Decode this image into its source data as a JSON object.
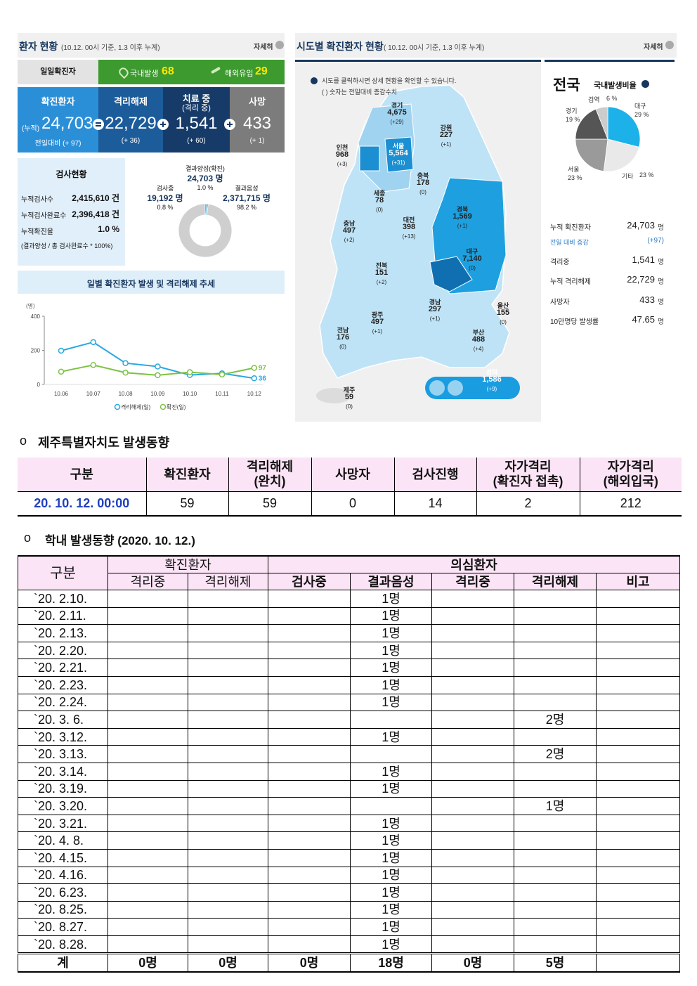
{
  "left_panel": {
    "title": "환자 현황",
    "subtitle": "(10.12. 00시 기준, 1.3 이후 누계)",
    "more": "자세히",
    "daily": {
      "label": "일일확진자",
      "domestic_label": "국내발생",
      "domestic": "68",
      "overseas_label": "해외유입",
      "overseas": "29"
    },
    "stats": [
      {
        "label": "확진환자",
        "prefix": "(누적)",
        "value": "24,703",
        "note": "전일대비 (+ 97)"
      },
      {
        "label": "격리해제",
        "value": "22,729",
        "note": "(+ 36)"
      },
      {
        "label": "치료 중",
        "sub": "(격리 중)",
        "value": "1,541",
        "note": "(+ 60)"
      },
      {
        "label": "사망",
        "value": "433",
        "note": "(+ 1)"
      }
    ],
    "tests": {
      "title": "검사현황",
      "rows": [
        [
          "누적검사수",
          "2,415,610 건"
        ],
        [
          "누적검사완료수",
          "2,396,418 건"
        ],
        [
          "누적확진율",
          "1.0 %"
        ]
      ],
      "note": "(결과양성 / 총 검사완료수 * 100%)"
    },
    "donut": {
      "type": "pie",
      "categories": [
        "검사중",
        "결과양성(확진)",
        "결과음성"
      ],
      "counts": [
        "19,192 명",
        "24,703 명",
        "2,371,715 명"
      ],
      "values": [
        0.8,
        1.0,
        98.2
      ],
      "value_labels": [
        "0.8 %",
        "1.0 %",
        "98.2 %"
      ],
      "colors": [
        "#5f5f5f",
        "#1ea5e2",
        "#cfcfcf"
      ]
    },
    "trend": {
      "type": "line",
      "title": "일별 확진환자 발생 및 격리해제 추세",
      "y_unit": "(명)",
      "x": [
        "10.06",
        "10.07",
        "10.08",
        "10.09",
        "10.10",
        "10.11",
        "10.12"
      ],
      "ylim": [
        0,
        400
      ],
      "yticks": [
        0,
        200,
        400
      ],
      "series": [
        {
          "name": "격리해제(일)",
          "color": "#29a8e0",
          "values": [
            198,
            248,
            125,
            105,
            55,
            65,
            36
          ]
        },
        {
          "name": "확진(일)",
          "color": "#7dc243",
          "values": [
            75,
            114,
            69,
            54,
            72,
            58,
            97
          ]
        }
      ]
    }
  },
  "right_panel": {
    "title": "시도별 확진환자 현황",
    "subtitle": "( 10.12. 00시 기준, 1.3 이후 누계)",
    "more": "자세히",
    "notes": [
      "시도를 클릭하시면 상세 현황을 확인할 수 있습니다.",
      "( ) 숫자는 전일대비 증감수치"
    ],
    "regions": [
      {
        "name": "경기",
        "count": "4,675",
        "change": "(+29)"
      },
      {
        "name": "강원",
        "count": "227",
        "change": "(+1)"
      },
      {
        "name": "인천",
        "count": "968",
        "change": "(+3)"
      },
      {
        "name": "서울",
        "count": "5,564",
        "change": "(+31)"
      },
      {
        "name": "충북",
        "count": "178",
        "change": "(0)"
      },
      {
        "name": "세종",
        "count": "78",
        "change": "(0)"
      },
      {
        "name": "충남",
        "count": "497",
        "change": "(+2)"
      },
      {
        "name": "대전",
        "count": "398",
        "change": "(+13)"
      },
      {
        "name": "경북",
        "count": "1,569",
        "change": "(+1)"
      },
      {
        "name": "대구",
        "count": "7,140",
        "change": "(0)"
      },
      {
        "name": "전북",
        "count": "151",
        "change": "(+2)"
      },
      {
        "name": "경남",
        "count": "297",
        "change": "(+1)"
      },
      {
        "name": "울산",
        "count": "155",
        "change": "(0)"
      },
      {
        "name": "광주",
        "count": "497",
        "change": "(+1)"
      },
      {
        "name": "전남",
        "count": "176",
        "change": "(0)"
      },
      {
        "name": "부산",
        "count": "488",
        "change": "(+4)"
      },
      {
        "name": "검역",
        "count": "1,586",
        "change": "(+9)"
      },
      {
        "name": "제주",
        "count": "59",
        "change": "(0)"
      }
    ],
    "national": {
      "title": "전국",
      "pie_title": "국내발생비율",
      "pie": {
        "type": "pie",
        "categories": [
          "대구",
          "기타",
          "서울",
          "경기",
          "검역"
        ],
        "values": [
          29,
          23,
          23,
          19,
          6
        ],
        "value_labels": [
          "29 %",
          "23 %",
          "23 %",
          "19 %",
          "6 %"
        ],
        "colors": [
          "#1cb1e8",
          "#e9e9e9",
          "#9a9a9a",
          "#555555",
          "#cccccc"
        ]
      },
      "stats": [
        {
          "label": "누적 확진환자",
          "value": "24,703",
          "unit": "명"
        },
        {
          "label": "전일 대비 증감",
          "value": "(+97)"
        },
        {
          "label": "격리중",
          "value": "1,541",
          "unit": "명"
        },
        {
          "label": "누적 격리해제",
          "value": "22,729",
          "unit": "명"
        },
        {
          "label": "사망자",
          "value": "433",
          "unit": "명"
        },
        {
          "label": "10만명당 발생률",
          "value": "47.65",
          "unit": "명"
        }
      ]
    }
  },
  "jeju_section": {
    "bullet": "o",
    "title": "제주특별자치도 발생동향",
    "table": {
      "header": [
        "구분",
        "확진환자",
        "격리해제\n(완치)",
        "사망자",
        "검사진행",
        "자가격리\n(확진자 접촉)",
        "자가격리\n(해외입국)"
      ],
      "rows": [
        [
          "20. 10. 12. 00:00",
          "59",
          "59",
          "0",
          "14",
          "2",
          "212"
        ]
      ]
    }
  },
  "school_section": {
    "bullet": "o",
    "title": "학내 발생동향 (2020. 10. 12.)",
    "table": {
      "first_header": "구분",
      "groups": [
        {
          "name": "확진환자",
          "columns": [
            "격리중",
            "격리해제"
          ]
        },
        {
          "name": "의심환자",
          "columns": [
            "검사중",
            "결과음성",
            "격리중",
            "격리해제",
            "비고"
          ]
        }
      ],
      "rows": [
        [
          "`20. 2.10.",
          null,
          null,
          null,
          "1명",
          null,
          null,
          null
        ],
        [
          "`20. 2.11.",
          null,
          null,
          null,
          "1명",
          null,
          null,
          null
        ],
        [
          "`20. 2.13.",
          null,
          null,
          null,
          "1명",
          null,
          null,
          null
        ],
        [
          "`20. 2.20.",
          null,
          null,
          null,
          "1명",
          null,
          null,
          null
        ],
        [
          "`20. 2.21.",
          null,
          null,
          null,
          "1명",
          null,
          null,
          null
        ],
        [
          "`20. 2.23.",
          null,
          null,
          null,
          "1명",
          null,
          null,
          null
        ],
        [
          "`20. 2.24.",
          null,
          null,
          null,
          "1명",
          null,
          null,
          null
        ],
        [
          "`20. 3. 6.",
          null,
          null,
          null,
          null,
          null,
          "2명",
          null
        ],
        [
          "`20. 3.12.",
          null,
          null,
          null,
          "1명",
          null,
          null,
          null
        ],
        [
          "`20. 3.13.",
          null,
          null,
          null,
          null,
          null,
          "2명",
          null
        ],
        [
          "`20. 3.14.",
          null,
          null,
          null,
          "1명",
          null,
          null,
          null
        ],
        [
          "`20. 3.19.",
          null,
          null,
          null,
          "1명",
          null,
          null,
          null
        ],
        [
          "`20. 3.20.",
          null,
          null,
          null,
          null,
          null,
          "1명",
          null
        ],
        [
          "`20. 3.21.",
          null,
          null,
          null,
          "1명",
          null,
          null,
          null
        ],
        [
          "`20. 4. 8.",
          null,
          null,
          null,
          "1명",
          null,
          null,
          null
        ],
        [
          "`20. 4.15.",
          null,
          null,
          null,
          "1명",
          null,
          null,
          null
        ],
        [
          "`20. 4.16.",
          null,
          null,
          null,
          "1명",
          null,
          null,
          null
        ],
        [
          "`20. 6.23.",
          null,
          null,
          null,
          "1명",
          null,
          null,
          null
        ],
        [
          "`20. 8.25.",
          null,
          null,
          null,
          "1명",
          null,
          null,
          null
        ],
        [
          "`20. 8.27.",
          null,
          null,
          null,
          "1명",
          null,
          null,
          null
        ],
        [
          "`20. 8.28.",
          null,
          null,
          null,
          "1명",
          null,
          null,
          null
        ]
      ],
      "total": [
        "계",
        "0명",
        "0명",
        "0명",
        "18명",
        "0명",
        "5명",
        null
      ]
    }
  }
}
